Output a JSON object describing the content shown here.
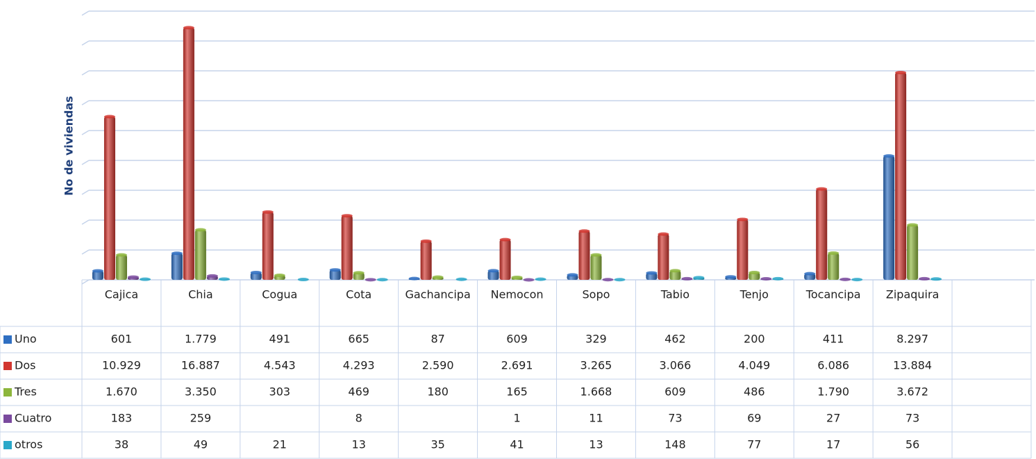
{
  "chart_data": {
    "type": "bar",
    "y_label": "No de viviendas",
    "categories": [
      "Cajica",
      "Chia",
      "Cogua",
      "Cota",
      "Gachancipa",
      "Nemocon",
      "Sopo",
      "Tabio",
      "Tenjo",
      "Tocancipa",
      "Zipaquira",
      null
    ],
    "series": [
      {
        "name": "Uno",
        "color": "#2f6fc2",
        "values": [
          601,
          1779,
          491,
          665,
          87,
          609,
          329,
          462,
          200,
          411,
          8297,
          null
        ],
        "value_labels": [
          "601",
          "1.779",
          "491",
          "665",
          "87",
          "609",
          "329",
          "462",
          "200",
          "411",
          "8.297",
          null
        ]
      },
      {
        "name": "Dos",
        "color": "#d2362f",
        "values": [
          10929,
          16887,
          4543,
          4293,
          2590,
          2691,
          3265,
          3066,
          4049,
          6086,
          13884,
          null
        ],
        "value_labels": [
          "10.929",
          "16.887",
          "4.543",
          "4.293",
          "2.590",
          "2.691",
          "3.265",
          "3.066",
          "4.049",
          "6.086",
          "13.884",
          null
        ]
      },
      {
        "name": "Tres",
        "color": "#8db63c",
        "values": [
          1670,
          3350,
          303,
          469,
          180,
          165,
          1668,
          609,
          486,
          1790,
          3672,
          null
        ],
        "value_labels": [
          "1.670",
          "3.350",
          "303",
          "469",
          "180",
          "165",
          "1.668",
          "609",
          "486",
          "1.790",
          "3.672",
          null
        ]
      },
      {
        "name": "Cuatro",
        "color": "#7a4a9e",
        "values": [
          183,
          259,
          null,
          8,
          null,
          1,
          11,
          73,
          69,
          27,
          73,
          null
        ],
        "value_labels": [
          "183",
          "259",
          null,
          "8",
          null,
          "1",
          "11",
          "73",
          "69",
          "27",
          "73",
          null
        ]
      },
      {
        "name": "otros",
        "color": "#2ba8c9",
        "values": [
          38,
          49,
          21,
          13,
          35,
          41,
          13,
          148,
          77,
          17,
          56,
          null
        ],
        "value_labels": [
          "38",
          "49",
          "21",
          "13",
          "35",
          "41",
          "13",
          "148",
          "77",
          "17",
          "56",
          null
        ]
      }
    ],
    "ylim": [
      0,
      18000
    ],
    "yticks": [
      0,
      2000,
      4000,
      6000,
      8000,
      10000,
      12000,
      14000,
      16000,
      18000
    ],
    "grid": true
  }
}
